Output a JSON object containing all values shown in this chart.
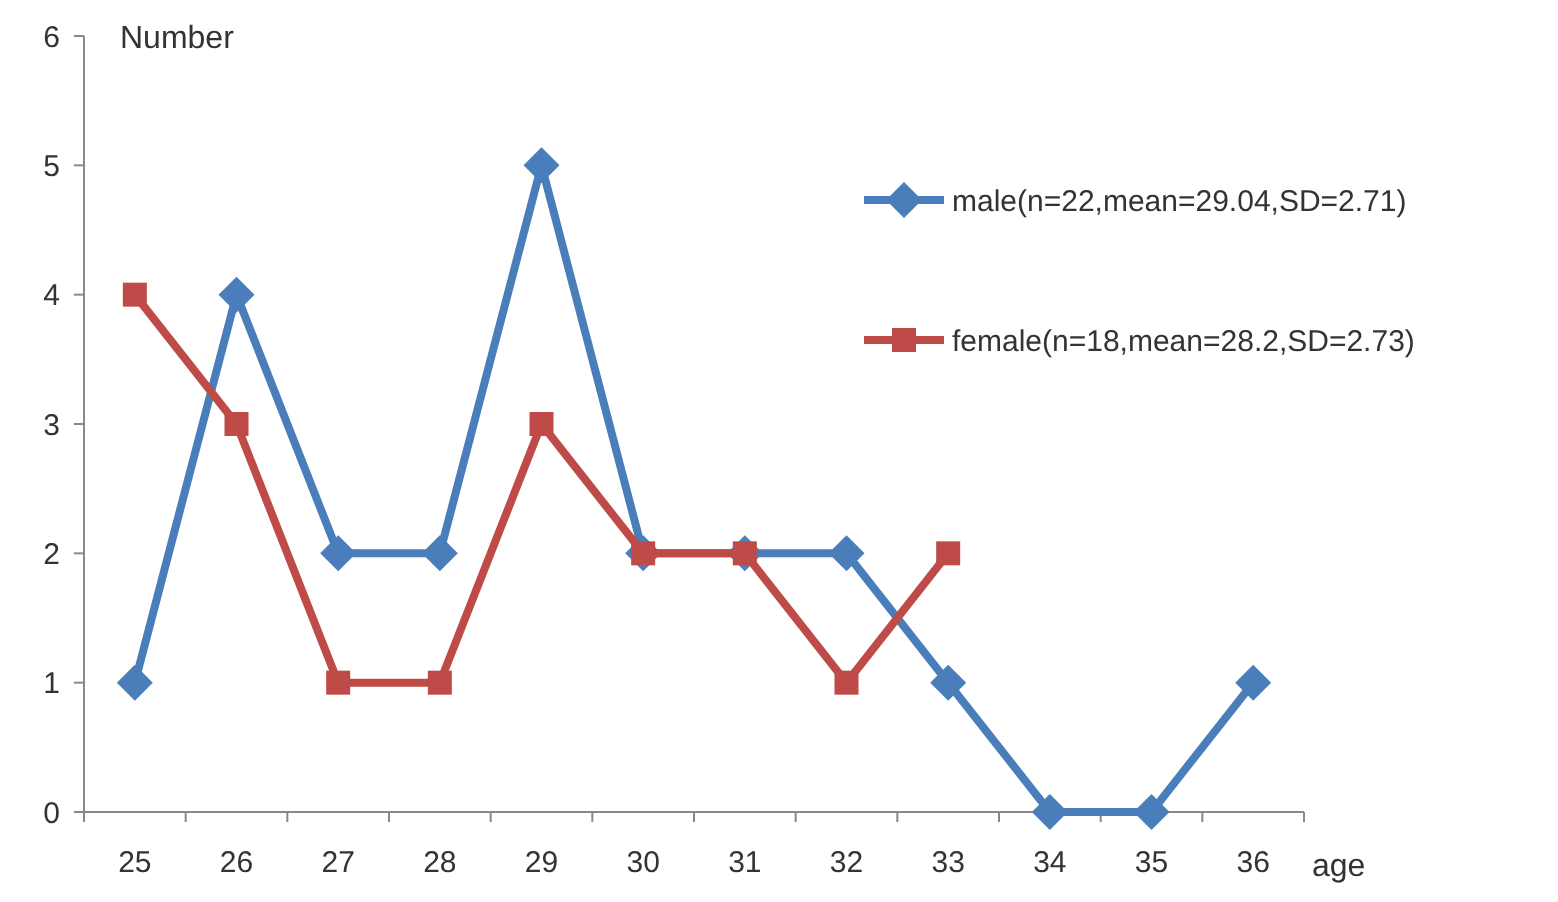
{
  "chart_data": {
    "type": "line",
    "xlabel": "age",
    "ylabel": "Number",
    "categories": [
      "25",
      "26",
      "27",
      "28",
      "29",
      "30",
      "31",
      "32",
      "33",
      "34",
      "35",
      "36"
    ],
    "series": [
      {
        "name": "male(n=22,mean=29.04,SD=2.71)",
        "color": "#4a7ebb",
        "marker": "diamond",
        "values": [
          1,
          4,
          2,
          2,
          5,
          2,
          2,
          2,
          1,
          0,
          0,
          1
        ]
      },
      {
        "name": "female(n=18,mean=28.2,SD=2.73)",
        "color": "#be4b48",
        "marker": "square",
        "values": [
          4,
          3,
          1,
          1,
          3,
          2,
          2,
          1,
          2,
          null,
          null,
          null
        ]
      }
    ],
    "ylim": [
      0,
      6
    ],
    "yticks": [
      0,
      1,
      2,
      3,
      4,
      5,
      6
    ],
    "grid": false,
    "legend": "right",
    "line_style": "solid"
  }
}
